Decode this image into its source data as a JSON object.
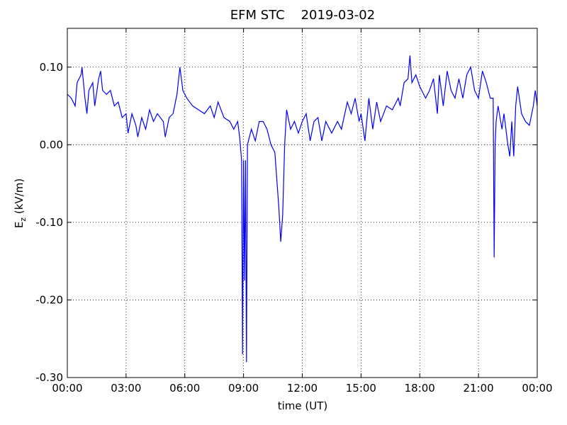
{
  "chart_data": {
    "type": "line",
    "title": "EFM STC    2019-03-02",
    "xlabel": "time (UT)",
    "ylabel": [
      "E",
      "z",
      " (kV/m)"
    ],
    "xlim": [
      0,
      24
    ],
    "ylim": [
      -0.3,
      0.15
    ],
    "xticks": [
      {
        "value": 0,
        "label": "00:00"
      },
      {
        "value": 3,
        "label": "03:00"
      },
      {
        "value": 6,
        "label": "06:00"
      },
      {
        "value": 9,
        "label": "09:00"
      },
      {
        "value": 12,
        "label": "12:00"
      },
      {
        "value": 15,
        "label": "15:00"
      },
      {
        "value": 18,
        "label": "18:00"
      },
      {
        "value": 21,
        "label": "21:00"
      },
      {
        "value": 24,
        "label": "00:00"
      }
    ],
    "yticks": [
      {
        "value": -0.3,
        "label": "-0.30"
      },
      {
        "value": -0.2,
        "label": "-0.20"
      },
      {
        "value": -0.1,
        "label": "-0.10"
      },
      {
        "value": 0,
        "label": "0.00"
      },
      {
        "value": 0.1,
        "label": "0.10"
      }
    ],
    "grid": true,
    "x": [
      0,
      0.2,
      0.4,
      0.5,
      0.7,
      0.75,
      0.9,
      1.0,
      1.1,
      1.3,
      1.4,
      1.6,
      1.7,
      1.8,
      2.0,
      2.2,
      2.4,
      2.6,
      2.8,
      3.0,
      3.1,
      3.3,
      3.5,
      3.6,
      3.8,
      4.0,
      4.2,
      4.4,
      4.6,
      4.9,
      5.0,
      5.2,
      5.4,
      5.6,
      5.75,
      5.9,
      6.1,
      6.4,
      6.7,
      7.0,
      7.3,
      7.5,
      7.7,
      8.0,
      8.3,
      8.5,
      8.7,
      8.8,
      8.9,
      8.95,
      9.0,
      9.05,
      9.1,
      9.15,
      9.2,
      9.4,
      9.6,
      9.8,
      10.0,
      10.2,
      10.4,
      10.6,
      10.8,
      10.9,
      11.0,
      11.1,
      11.2,
      11.4,
      11.6,
      11.8,
      12.0,
      12.2,
      12.4,
      12.6,
      12.8,
      13.0,
      13.2,
      13.5,
      13.8,
      14.0,
      14.3,
      14.5,
      14.7,
      14.9,
      15.0,
      15.2,
      15.4,
      15.6,
      15.8,
      16.0,
      16.3,
      16.6,
      16.9,
      17.0,
      17.2,
      17.4,
      17.5,
      17.6,
      17.8,
      18.0,
      18.3,
      18.5,
      18.7,
      18.9,
      19.0,
      19.2,
      19.4,
      19.6,
      19.8,
      20.0,
      20.2,
      20.4,
      20.6,
      20.8,
      21.0,
      21.2,
      21.4,
      21.6,
      21.75,
      21.8,
      21.85,
      21.9,
      22.0,
      22.2,
      22.3,
      22.5,
      22.6,
      22.7,
      22.8,
      22.9,
      23.0,
      23.2,
      23.4,
      23.6,
      23.8,
      23.9,
      24.0
    ],
    "series": [
      {
        "name": "Ez",
        "color": "#0000ff",
        "values": [
          0.065,
          0.06,
          0.05,
          0.08,
          0.09,
          0.1,
          0.06,
          0.04,
          0.07,
          0.08,
          0.05,
          0.085,
          0.095,
          0.07,
          0.065,
          0.07,
          0.05,
          0.055,
          0.035,
          0.04,
          0.015,
          0.04,
          0.025,
          0.01,
          0.035,
          0.02,
          0.045,
          0.03,
          0.04,
          0.03,
          0.01,
          0.035,
          0.04,
          0.065,
          0.1,
          0.07,
          0.06,
          0.05,
          0.045,
          0.04,
          0.05,
          0.035,
          0.055,
          0.035,
          0.03,
          0.02,
          0.03,
          0.01,
          -0.02,
          -0.27,
          -0.02,
          -0.175,
          -0.02,
          -0.28,
          0.0,
          0.02,
          0.005,
          0.03,
          0.03,
          0.02,
          0.0,
          -0.01,
          -0.08,
          -0.125,
          -0.09,
          0.0,
          0.045,
          0.02,
          0.03,
          0.015,
          0.03,
          0.04,
          0.005,
          0.03,
          0.035,
          0.005,
          0.03,
          0.015,
          0.03,
          0.02,
          0.055,
          0.04,
          0.06,
          0.03,
          0.04,
          0.005,
          0.06,
          0.02,
          0.055,
          0.03,
          0.05,
          0.045,
          0.06,
          0.05,
          0.08,
          0.085,
          0.115,
          0.08,
          0.09,
          0.075,
          0.06,
          0.07,
          0.085,
          0.04,
          0.09,
          0.05,
          0.095,
          0.07,
          0.06,
          0.085,
          0.06,
          0.09,
          0.1,
          0.07,
          0.06,
          0.095,
          0.08,
          0.06,
          0.06,
          -0.145,
          0.0,
          0.03,
          0.05,
          0.02,
          0.04,
          0.0,
          -0.015,
          0.03,
          -0.015,
          0.05,
          0.075,
          0.04,
          0.03,
          0.025,
          0.05,
          0.07,
          0.05
        ]
      }
    ]
  }
}
